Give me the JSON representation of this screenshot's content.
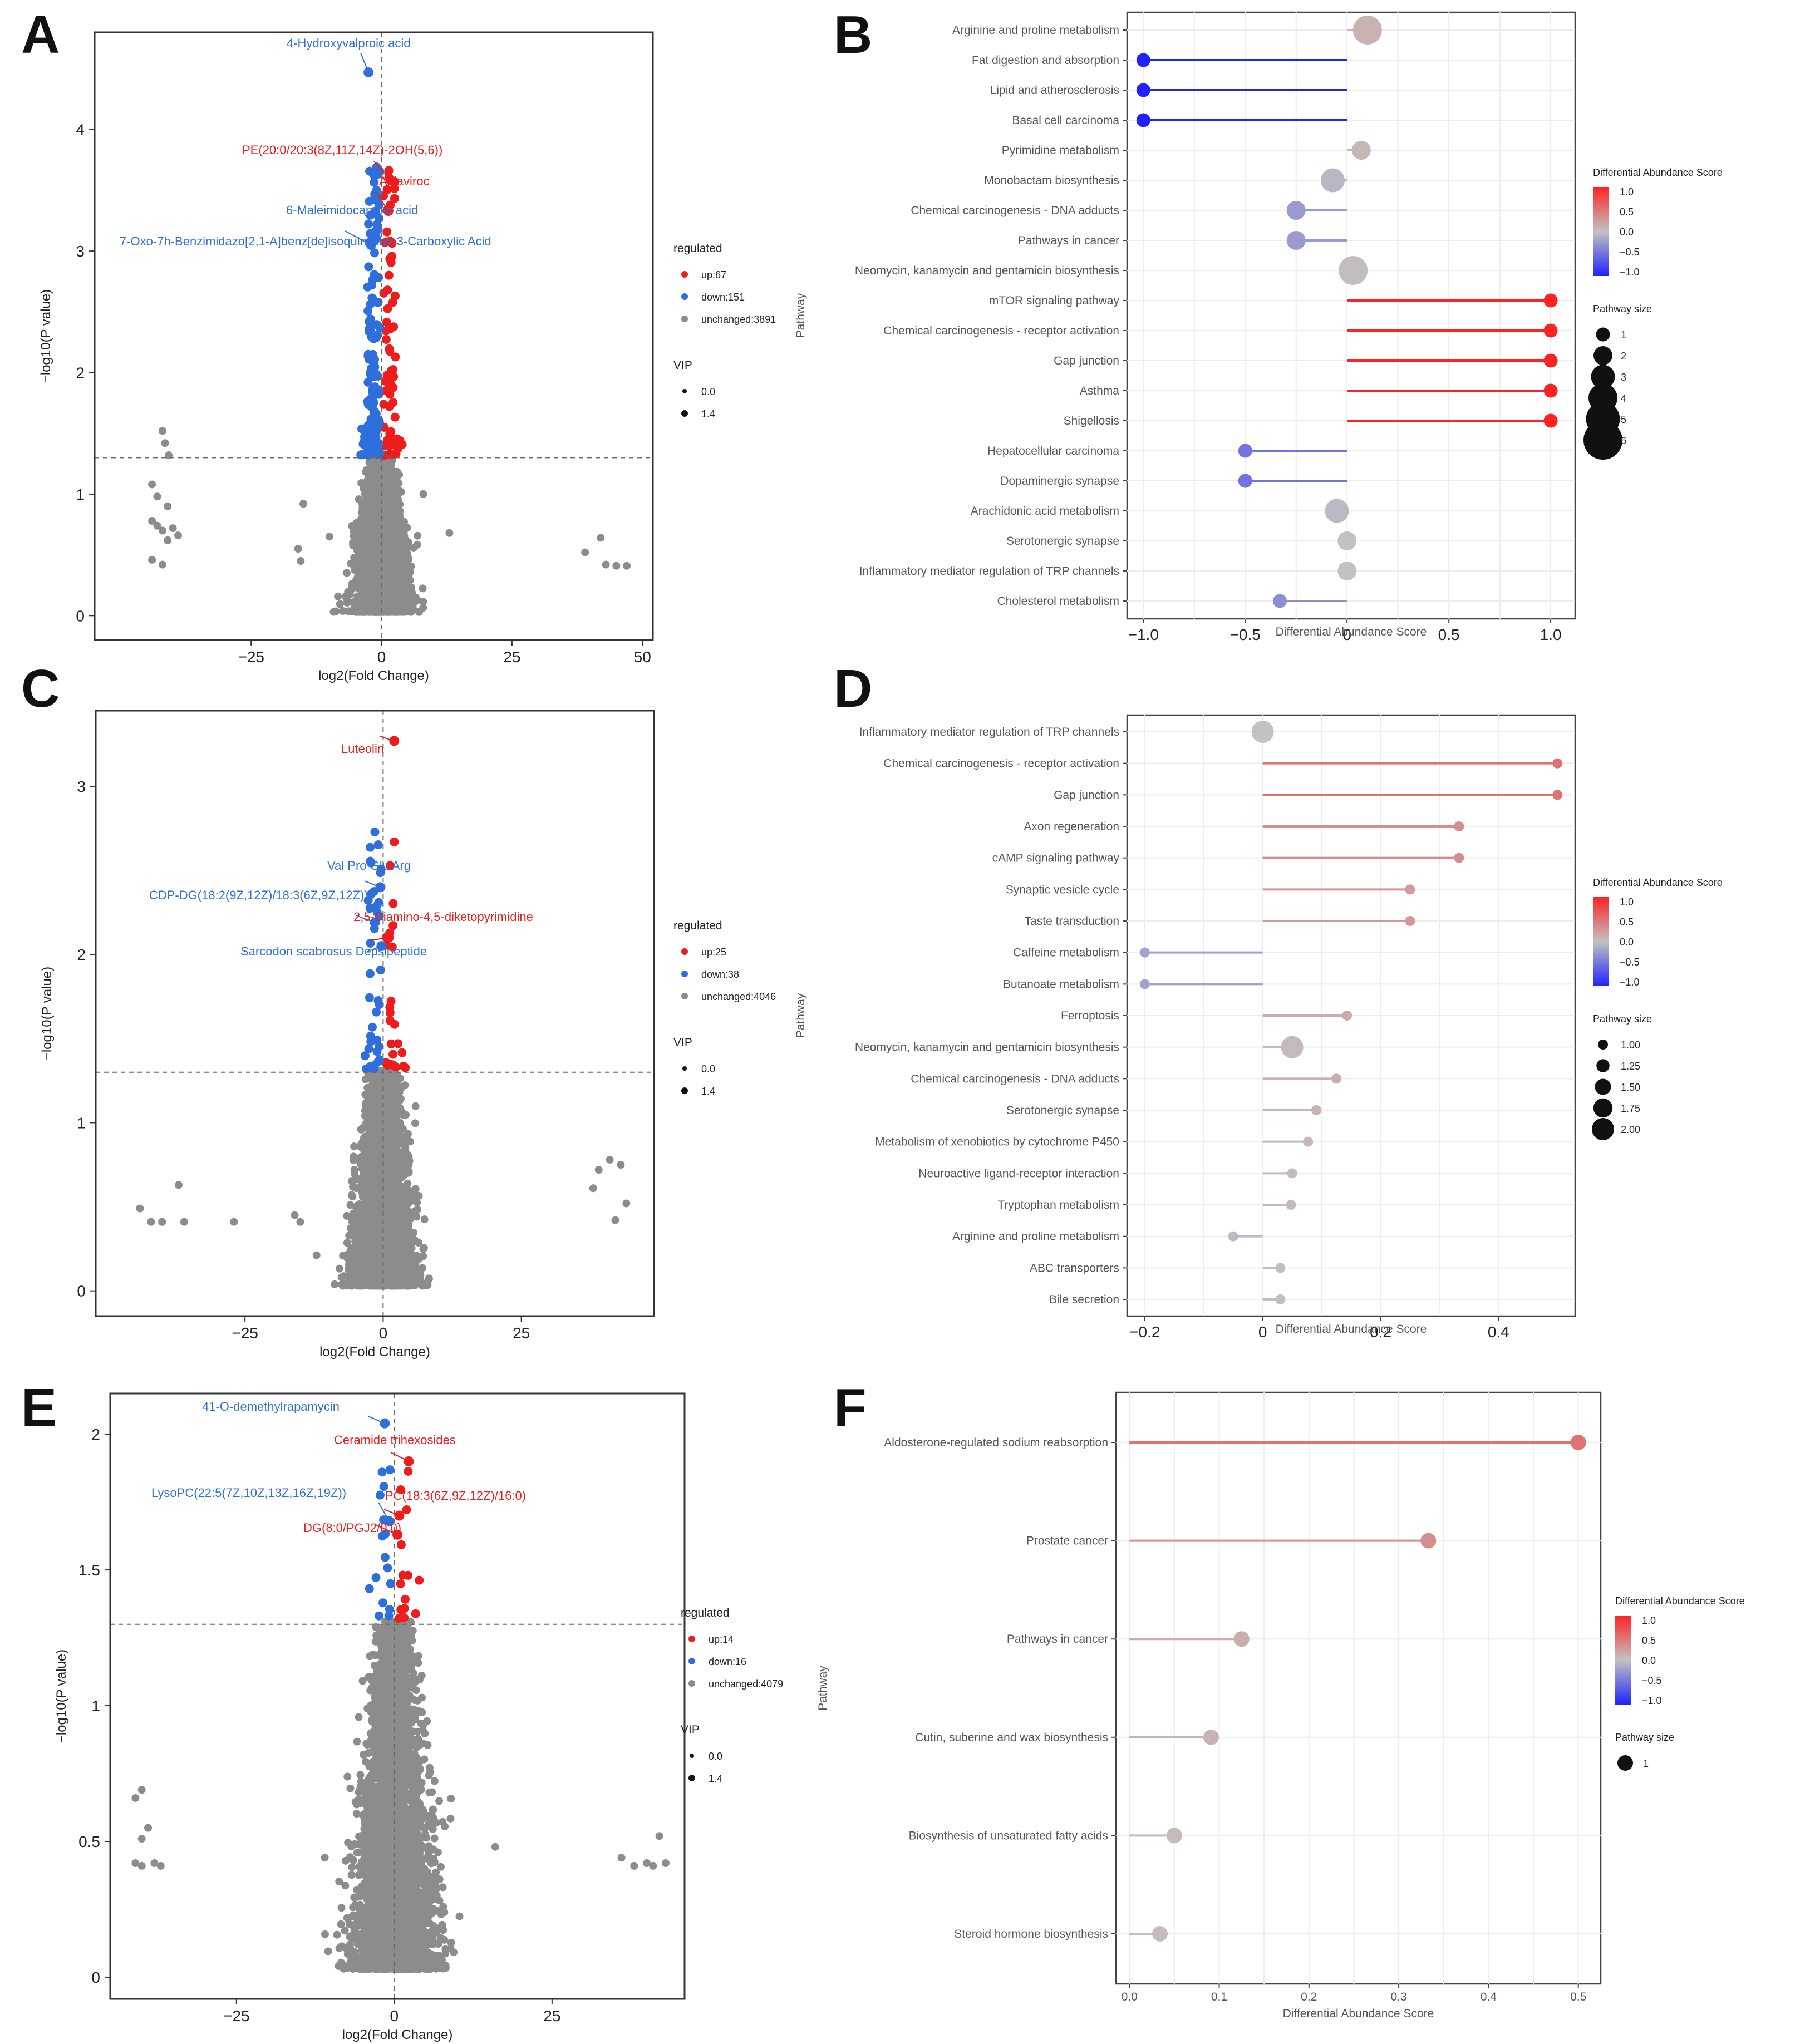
{
  "figure": {
    "panel_letters": [
      "A",
      "B",
      "C",
      "D",
      "E",
      "F"
    ],
    "colors": {
      "up": "#ee1c1c",
      "down": "#2f6fdb",
      "unchanged": "#8c8c8c",
      "low": "#2222ff",
      "mid": "#bbbbbb",
      "high": "#ff2222"
    }
  },
  "chart_data": [
    {
      "panel": "A",
      "type": "scatter",
      "xlabel": "log2(Fold Change)",
      "ylabel": "−log10(P value)",
      "xlim": [
        -55,
        52
      ],
      "ylim": [
        -0.2,
        4.8
      ],
      "xticks": [
        "−25",
        "0",
        "25",
        "50"
      ],
      "xtick_values": [
        -25,
        0,
        25,
        50
      ],
      "yticks": [
        "0",
        "1",
        "2",
        "3",
        "4"
      ],
      "ytick_values": [
        0,
        1,
        2,
        3,
        4
      ],
      "p_threshold_y": 1.3,
      "fc_threshold_x": 0,
      "legend": {
        "title": "regulated",
        "items": [
          "up:67",
          "down:151",
          "unchanged:3891"
        ],
        "vip_title": "VIP",
        "vip_items": [
          "0.0",
          "1.4"
        ]
      },
      "counts": {
        "up": 67,
        "down": 151,
        "unchanged": 3891
      },
      "spread_max": 4.5,
      "labeled_points": [
        {
          "label": "4-Hydroxyvalproic acid",
          "x": -2.5,
          "y": 4.47,
          "group": "down"
        },
        {
          "label": "PE(20:0/20:3(8Z,11Z,14Z)-2OH(5,6))",
          "x": 1.8,
          "y": 3.58,
          "group": "up"
        },
        {
          "label": "Aplaviroc",
          "x": 1.3,
          "y": 3.33,
          "group": "up"
        },
        {
          "label": "6-Maleimidocaproic acid",
          "x": -0.8,
          "y": 3.18,
          "group": "down"
        },
        {
          "label": "7-Oxo-7h-Benzimidazo[2,1-A]benz[de]isoquinoline-3-Carboxylic Acid",
          "x": -2.0,
          "y": 3.05,
          "group": "down"
        }
      ],
      "outliers": [
        [
          -42,
          1.52
        ],
        [
          -41.5,
          1.42
        ],
        [
          -40.8,
          1.32
        ],
        [
          -44,
          1.08
        ],
        [
          -43,
          0.98
        ],
        [
          -41,
          0.9
        ],
        [
          -44,
          0.78
        ],
        [
          -43,
          0.74
        ],
        [
          -42,
          0.7
        ],
        [
          -40,
          0.72
        ],
        [
          -39,
          0.66
        ],
        [
          -41,
          0.62
        ],
        [
          -44,
          0.46
        ],
        [
          -42,
          0.42
        ],
        [
          -15,
          0.92
        ],
        [
          -16,
          0.55
        ],
        [
          -15.5,
          0.45
        ],
        [
          13,
          0.68
        ],
        [
          -10,
          0.65
        ],
        [
          8,
          1.0
        ],
        [
          42,
          0.64
        ],
        [
          39,
          0.52
        ],
        [
          43,
          0.42
        ],
        [
          45,
          0.41
        ],
        [
          47,
          0.41
        ]
      ]
    },
    {
      "panel": "B",
      "type": "lollipop",
      "xlabel": "Differential Abundance Score",
      "ylabel": "Pathway",
      "xlim": [
        -1.08,
        1.12
      ],
      "xticks": [
        "−1.0",
        "−0.5",
        "0",
        "0.5",
        "1.0"
      ],
      "xtick_values": [
        -1.0,
        -0.5,
        0,
        0.5,
        1.0
      ],
      "pathways": [
        "Arginine and proline metabolism",
        "Fat digestion and absorption",
        "Lipid and atherosclerosis",
        "Basal cell carcinoma",
        "Pyrimidine metabolism",
        "Monobactam biosynthesis",
        "Chemical carcinogenesis - DNA adducts",
        "Pathways in cancer",
        "Neomycin, kanamycin and gentamicin biosynthesis",
        "mTOR signaling pathway",
        "Chemical carcinogenesis - receptor activation",
        "Gap junction",
        "Asthma",
        "Shigellosis",
        "Hepatocellular carcinoma",
        "Dopaminergic synapse",
        "Arachidonic acid metabolism",
        "Serotonergic synapse",
        "Inflammatory mediator regulation of TRP channels",
        "Cholesterol metabolism"
      ],
      "values": [
        0.1,
        -1.0,
        -1.0,
        -1.0,
        0.07,
        -0.07,
        -0.25,
        -0.25,
        0.03,
        1.0,
        1.0,
        1.0,
        1.0,
        1.0,
        -0.5,
        -0.5,
        -0.05,
        0,
        0,
        -0.33
      ],
      "sizes": [
        4,
        1,
        1,
        1,
        2,
        3,
        2,
        2,
        4,
        1,
        1,
        1,
        1,
        1,
        1,
        1,
        3,
        2,
        2,
        1
      ],
      "legend": {
        "color_title": "Differential Abundance Score",
        "color_ticks": [
          "1.0",
          "0.5",
          "0.0",
          "−0.5",
          "−1.0"
        ],
        "size_title": "Pathway size",
        "size_items": [
          "1",
          "2",
          "3",
          "4",
          "5",
          "6"
        ]
      }
    },
    {
      "panel": "C",
      "type": "scatter",
      "xlabel": "log2(Fold Change)",
      "ylabel": "−log10(P value)",
      "xlim": [
        -52,
        49
      ],
      "ylim": [
        -0.15,
        3.45
      ],
      "xticks": [
        "−25",
        "0",
        "25"
      ],
      "xtick_values": [
        -25,
        0,
        25
      ],
      "yticks": [
        "0",
        "1",
        "2",
        "3"
      ],
      "ytick_values": [
        0,
        1,
        2,
        3
      ],
      "p_threshold_y": 1.3,
      "fc_threshold_x": 0,
      "legend": {
        "title": "regulated",
        "items": [
          "up:25",
          "down:38",
          "unchanged:4046"
        ],
        "vip_title": "VIP",
        "vip_items": [
          "0.0",
          "1.4"
        ]
      },
      "counts": {
        "up": 25,
        "down": 38,
        "unchanged": 4046
      },
      "spread_max": 5,
      "labeled_points": [
        {
          "label": "Luteolin",
          "x": 2.0,
          "y": 3.27,
          "group": "up"
        },
        {
          "label": "Val Pro Glu Arg",
          "x": -0.5,
          "y": 2.4,
          "group": "down"
        },
        {
          "label": "CDP-DG(18:2(9Z,12Z)/18:3(6Z,9Z,12Z))",
          "x": -1.5,
          "y": 2.19,
          "group": "down"
        },
        {
          "label": "2,5-Diamino-4,5-diketopyrimidine",
          "x": 1.0,
          "y": 2.1,
          "group": "up"
        },
        {
          "label": "Sarcodon scabrosus Depsipeptide",
          "x": -0.3,
          "y": 2.05,
          "group": "down"
        }
      ],
      "outliers": [
        [
          -44,
          0.49
        ],
        [
          -42,
          0.41
        ],
        [
          -40,
          0.41
        ],
        [
          -37,
          0.63
        ],
        [
          -36,
          0.41
        ],
        [
          -27,
          0.41
        ],
        [
          -16,
          0.45
        ],
        [
          -15,
          0.41
        ],
        [
          38,
          0.61
        ],
        [
          39,
          0.72
        ],
        [
          41,
          0.78
        ],
        [
          43,
          0.75
        ],
        [
          44,
          0.52
        ],
        [
          42,
          0.42
        ]
      ]
    },
    {
      "panel": "D",
      "type": "lollipop",
      "xlabel": "Differential Abundance Score",
      "ylabel": "Pathway",
      "xlim": [
        -0.23,
        0.53
      ],
      "xticks": [
        "−0.2",
        "0",
        "0.2",
        "0.4"
      ],
      "xtick_values": [
        -0.2,
        0,
        0.2,
        0.4
      ],
      "pathways": [
        "Inflammatory mediator regulation of TRP channels",
        "Chemical carcinogenesis - receptor activation",
        "Gap junction",
        "Axon regeneration",
        "cAMP signaling pathway",
        "Synaptic vesicle cycle",
        "Taste transduction",
        "Caffeine metabolism",
        "Butanoate metabolism",
        "Ferroptosis",
        "Neomycin, kanamycin and gentamicin biosynthesis",
        "Chemical carcinogenesis - DNA adducts",
        "Serotonergic synapse",
        "Metabolism of xenobiotics by cytochrome P450",
        "Neuroactive ligand-receptor interaction",
        "Tryptophan metabolism",
        "Arginine and proline metabolism",
        "ABC transporters",
        "Bile secretion"
      ],
      "values": [
        0,
        0.5,
        0.5,
        0.333,
        0.333,
        0.25,
        0.25,
        -0.2,
        -0.2,
        0.143,
        0.05,
        0.125,
        0.091,
        0.077,
        0.05,
        0.048,
        -0.05,
        0.03,
        0.03
      ],
      "sizes": [
        2,
        1,
        1,
        1,
        1,
        1,
        1,
        1,
        1,
        1,
        2,
        1,
        1,
        1,
        1,
        1,
        1,
        1,
        1
      ],
      "legend": {
        "color_title": "Differential Abundance Score",
        "color_ticks": [
          "1.0",
          "0.5",
          "0.0",
          "−0.5",
          "−1.0"
        ],
        "size_title": "Pathway size",
        "size_items": [
          "1.00",
          "1.25",
          "1.50",
          "1.75",
          "2.00"
        ]
      }
    },
    {
      "panel": "E",
      "type": "scatter",
      "xlabel": "log2(Fold Change)",
      "ylabel": "−log10(P value)",
      "xlim": [
        -45,
        46
      ],
      "ylim": [
        -0.08,
        2.15
      ],
      "xticks": [
        "−25",
        "0",
        "25"
      ],
      "xtick_values": [
        -25,
        0,
        25
      ],
      "yticks": [
        "0",
        "0.5",
        "1",
        "1.5",
        "2"
      ],
      "ytick_values": [
        0,
        0.5,
        1,
        1.5,
        2
      ],
      "p_threshold_y": 1.3,
      "fc_threshold_x": 0,
      "legend": {
        "title": "regulated",
        "items": [
          "up:14",
          "down:16",
          "unchanged:4079"
        ],
        "vip_title": "VIP",
        "vip_items": [
          "0.0",
          "1.4"
        ]
      },
      "counts": {
        "up": 14,
        "down": 16,
        "unchanged": 4079
      },
      "spread_max": 6,
      "labeled_points": [
        {
          "label": "41-O-demethylrapamycin",
          "x": -1.5,
          "y": 2.04,
          "group": "down"
        },
        {
          "label": "Ceramide trihexosides",
          "x": 2.3,
          "y": 1.9,
          "group": "up"
        },
        {
          "label": "LysoPC(22:5(7Z,10Z,13Z,16Z,19Z))",
          "x": -0.8,
          "y": 1.68,
          "group": "down"
        },
        {
          "label": "PC(18:3(6Z,9Z,12Z)/16:0)",
          "x": 0.8,
          "y": 1.7,
          "group": "up"
        },
        {
          "label": "DG(8:0/PGJ2/0:0)",
          "x": 0.5,
          "y": 1.63,
          "group": "up"
        }
      ],
      "outliers": [
        [
          -40,
          0.69
        ],
        [
          -41,
          0.66
        ],
        [
          -39,
          0.55
        ],
        [
          -40,
          0.51
        ],
        [
          -41,
          0.42
        ],
        [
          -40,
          0.41
        ],
        [
          -38,
          0.42
        ],
        [
          -37,
          0.41
        ],
        [
          -11,
          0.44
        ],
        [
          16,
          0.48
        ],
        [
          36,
          0.44
        ],
        [
          38,
          0.41
        ],
        [
          40,
          0.42
        ],
        [
          42,
          0.52
        ],
        [
          43,
          0.42
        ],
        [
          41,
          0.41
        ]
      ]
    },
    {
      "panel": "F",
      "type": "lollipop",
      "xlabel": "Differential Abundance Score",
      "ylabel": "Pathway",
      "xlim": [
        -0.015,
        0.525
      ],
      "xticks": [
        "0.0",
        "0.1",
        "0.2",
        "0.3",
        "0.4",
        "0.5"
      ],
      "xtick_values": [
        0,
        0.1,
        0.2,
        0.3,
        0.4,
        0.5
      ],
      "pathways": [
        "Aldosterone-regulated sodium reabsorption",
        "Prostate cancer",
        "Pathways in cancer",
        "Cutin, suberine and wax biosynthesis",
        "Biosynthesis of unsaturated fatty acids",
        "Steroid hormone biosynthesis"
      ],
      "values": [
        0.5,
        0.333,
        0.125,
        0.091,
        0.05,
        0.034
      ],
      "sizes": [
        1,
        1,
        1,
        1,
        1,
        1
      ],
      "legend": {
        "color_title": "Differential Abundance Score",
        "color_ticks": [
          "1.0",
          "0.5",
          "0.0",
          "−0.5",
          "−1.0"
        ],
        "size_title": "Pathway size",
        "size_items": [
          "1"
        ]
      }
    }
  ]
}
